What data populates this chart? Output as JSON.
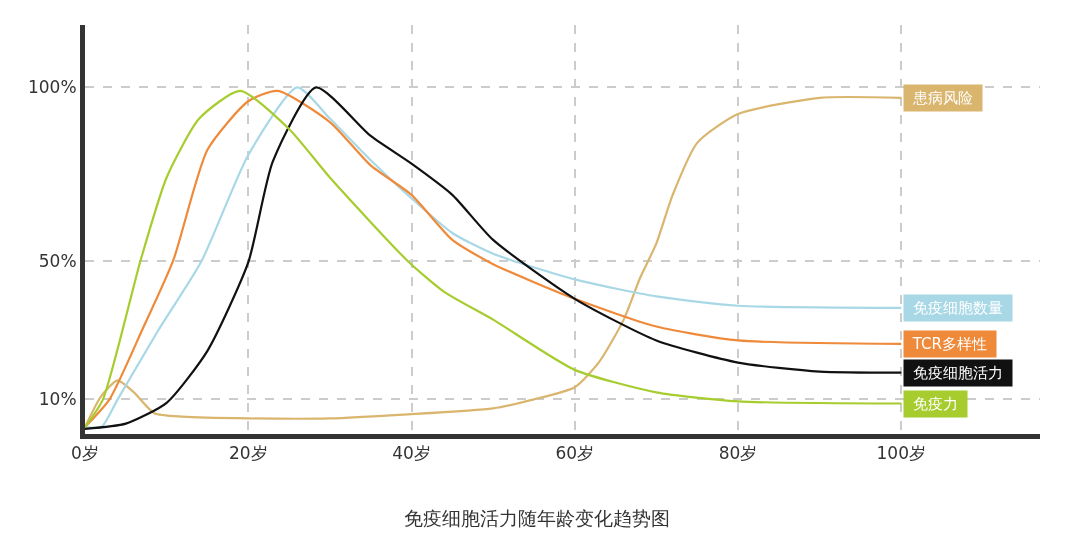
{
  "chart_data": {
    "type": "line",
    "title": "免疫细胞活力随年龄变化趋势图",
    "xlim": [
      0,
      117
    ],
    "ylim": [
      0,
      118
    ],
    "xticks": [
      {
        "value": 0,
        "label": "0岁"
      },
      {
        "value": 20,
        "label": "20岁"
      },
      {
        "value": 40,
        "label": "40岁"
      },
      {
        "value": 60,
        "label": "60岁"
      },
      {
        "value": 80,
        "label": "80岁"
      },
      {
        "value": 100,
        "label": "100岁"
      }
    ],
    "yticks": [
      {
        "value": 10,
        "label": "10%"
      },
      {
        "value": 50,
        "label": "50%"
      },
      {
        "value": 100,
        "label": "100%"
      }
    ],
    "grid": true,
    "legend": false,
    "marker": "none",
    "line_style": "solid",
    "series": [
      {
        "name": "患病风险",
        "color": "#d9b56e",
        "x": [
          0,
          2,
          4,
          6,
          8.5,
          12,
          20,
          30,
          39,
          50,
          55,
          60,
          63,
          66,
          68,
          70,
          72,
          75,
          80,
          90,
          100
        ],
        "values": [
          2,
          11,
          15.5,
          12,
          6,
          5,
          4.5,
          4.5,
          5.6,
          7.4,
          10,
          13.5,
          20.8,
          33,
          45,
          55,
          69,
          84,
          92.3,
          97,
          97
        ]
      },
      {
        "name": "免疫细胞数量",
        "color": "#a8d8e6",
        "x": [
          0,
          2,
          4,
          9,
          14.3,
          20,
          26,
          30,
          35,
          40,
          45,
          50,
          60,
          70,
          80,
          100
        ],
        "values": [
          2,
          2,
          10,
          30,
          50,
          80.5,
          100,
          91,
          79,
          68,
          58,
          52,
          44.6,
          39.7,
          37,
          36.4
        ]
      },
      {
        "name": "TCR多样性",
        "color": "#ee8a3a",
        "x": [
          0,
          3,
          7,
          10.8,
          15,
          20,
          23.6,
          30,
          35,
          40,
          45,
          50,
          60,
          70,
          80,
          100
        ],
        "values": [
          2,
          10,
          30,
          50,
          82,
          96,
          99,
          90,
          77.5,
          69,
          56,
          49,
          39,
          31,
          27,
          26
        ]
      },
      {
        "name": "免疫细胞活力",
        "color": "#111111",
        "x": [
          0,
          5,
          10,
          15,
          20,
          23,
          28.3,
          35,
          40,
          45,
          50,
          60,
          70,
          80,
          90,
          100
        ],
        "values": [
          1.5,
          3,
          9,
          24,
          49.5,
          78.6,
          100,
          86,
          78,
          69,
          56,
          39,
          27,
          20.6,
          18,
          17.7
        ]
      },
      {
        "name": "免疫力",
        "color": "#a6cc2e",
        "x": [
          0,
          2.2,
          6.8,
          10,
          14,
          19,
          25,
          30,
          39.5,
          44,
          50,
          60,
          70,
          80,
          100
        ],
        "values": [
          2,
          10,
          50,
          74,
          91,
          99,
          88,
          74,
          50,
          41,
          33,
          18.5,
          12,
          9.4,
          8.8
        ]
      }
    ]
  }
}
